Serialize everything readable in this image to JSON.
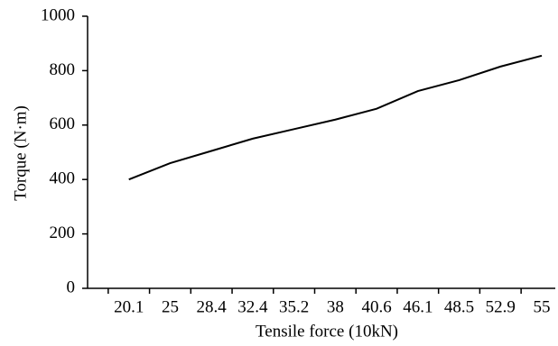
{
  "chart_data": {
    "type": "line",
    "xlabel": "Tensile force (10kN)",
    "ylabel": "Torque (N·m)",
    "categories": [
      "20.1",
      "25",
      "28.4",
      "32.4",
      "35.2",
      "38",
      "40.6",
      "46.1",
      "48.5",
      "52.9",
      "55"
    ],
    "values": [
      400,
      460,
      505,
      550,
      585,
      620,
      660,
      725,
      765,
      815,
      855
    ],
    "color": "#000000",
    "ylim": [
      0,
      1000
    ],
    "yticks": [
      0,
      200,
      400,
      600,
      800,
      1000
    ]
  }
}
